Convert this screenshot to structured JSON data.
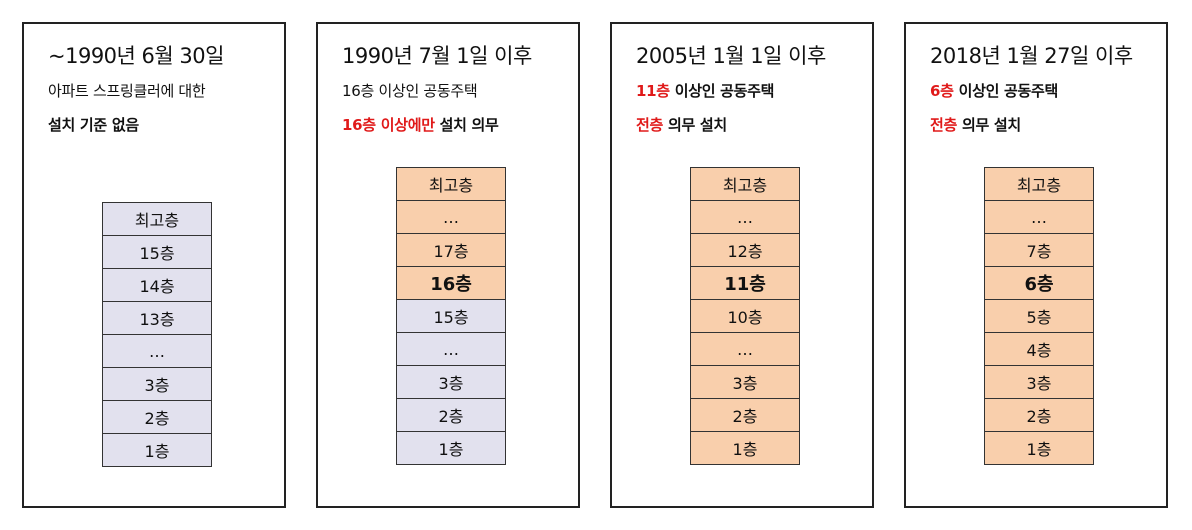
{
  "colors": {
    "sprinkler_required": "#f9cfac",
    "not_required": "#e2e1ee",
    "emphasis": "#e01a1a"
  },
  "panels": [
    {
      "title": "~1990년 6월 30일",
      "line1": "아파트 스프링클러에 대한",
      "line2": "설치 기준 없음",
      "floors": [
        {
          "label": "최고층",
          "required": false,
          "highlight": false
        },
        {
          "label": "15층",
          "required": false,
          "highlight": false
        },
        {
          "label": "14층",
          "required": false,
          "highlight": false
        },
        {
          "label": "13층",
          "required": false,
          "highlight": false
        },
        {
          "label": "…",
          "required": false,
          "highlight": false
        },
        {
          "label": "3층",
          "required": false,
          "highlight": false
        },
        {
          "label": "2층",
          "required": false,
          "highlight": false
        },
        {
          "label": "1층",
          "required": false,
          "highlight": false
        }
      ]
    },
    {
      "title": "1990년 7월 1일 이후",
      "line1": "16층 이상인 공동주택",
      "line2_red": "16층 이상에만",
      "line2_rest": " 설치 의무",
      "floors": [
        {
          "label": "최고층",
          "required": true,
          "highlight": false
        },
        {
          "label": "…",
          "required": true,
          "highlight": false
        },
        {
          "label": "17층",
          "required": true,
          "highlight": false
        },
        {
          "label": "16층",
          "required": true,
          "highlight": true
        },
        {
          "label": "15층",
          "required": false,
          "highlight": false
        },
        {
          "label": "…",
          "required": false,
          "highlight": false
        },
        {
          "label": "3층",
          "required": false,
          "highlight": false
        },
        {
          "label": "2층",
          "required": false,
          "highlight": false
        },
        {
          "label": "1층",
          "required": false,
          "highlight": false
        }
      ]
    },
    {
      "title": "2005년 1월 1일 이후",
      "line1_red": "11층",
      "line1_rest": " 이상인 공동주택",
      "line2_red": "전층",
      "line2_rest": " 의무 설치",
      "floors": [
        {
          "label": "최고층",
          "required": true,
          "highlight": false
        },
        {
          "label": "…",
          "required": true,
          "highlight": false
        },
        {
          "label": "12층",
          "required": true,
          "highlight": false
        },
        {
          "label": "11층",
          "required": true,
          "highlight": true
        },
        {
          "label": "10층",
          "required": true,
          "highlight": false
        },
        {
          "label": "…",
          "required": true,
          "highlight": false
        },
        {
          "label": "3층",
          "required": true,
          "highlight": false
        },
        {
          "label": "2층",
          "required": true,
          "highlight": false
        },
        {
          "label": "1층",
          "required": true,
          "highlight": false
        }
      ]
    },
    {
      "title": "2018년 1월 27일 이후",
      "line1_red": "6층",
      "line1_rest": " 이상인 공동주택",
      "line2_red": "전층",
      "line2_rest": " 의무 설치",
      "floors": [
        {
          "label": "최고층",
          "required": true,
          "highlight": false
        },
        {
          "label": "…",
          "required": true,
          "highlight": false
        },
        {
          "label": "7층",
          "required": true,
          "highlight": false
        },
        {
          "label": "6층",
          "required": true,
          "highlight": true
        },
        {
          "label": "5층",
          "required": true,
          "highlight": false
        },
        {
          "label": "4층",
          "required": true,
          "highlight": false
        },
        {
          "label": "3층",
          "required": true,
          "highlight": false
        },
        {
          "label": "2층",
          "required": true,
          "highlight": false
        },
        {
          "label": "1층",
          "required": true,
          "highlight": false
        }
      ]
    }
  ]
}
